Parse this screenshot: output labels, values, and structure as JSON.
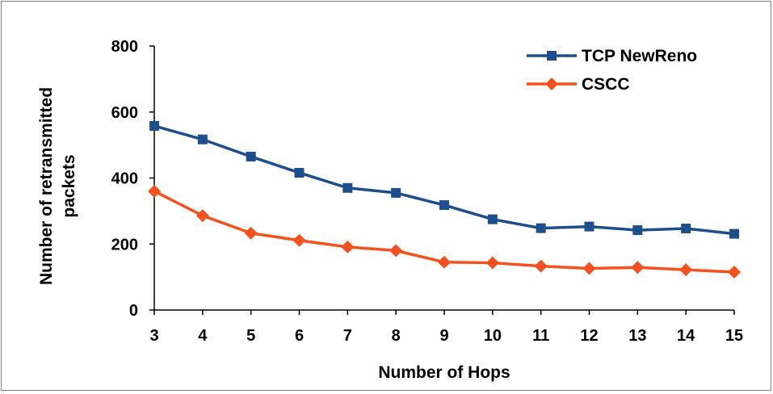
{
  "chart_data": {
    "type": "line",
    "title": "",
    "xlabel": "Number of Hops",
    "ylabel": [
      "Number of retransmitted",
      "packets"
    ],
    "x": [
      3,
      4,
      5,
      6,
      7,
      8,
      9,
      10,
      11,
      12,
      13,
      14,
      15
    ],
    "x_ticks": [
      "3",
      "4",
      "5",
      "6",
      "7",
      "8",
      "9",
      "10",
      "11",
      "12",
      "13",
      "14",
      "15"
    ],
    "ylim": [
      0,
      800
    ],
    "y_ticks": [
      0,
      200,
      400,
      600,
      800
    ],
    "y_tick_labels": [
      "0",
      "200",
      "400",
      "600",
      "800"
    ],
    "grid": false,
    "legend_position": "top-right",
    "series": [
      {
        "name": "TCP NewReno",
        "color": "#1f4e8c",
        "marker": "square",
        "values": [
          558,
          517,
          465,
          416,
          370,
          355,
          318,
          275,
          248,
          253,
          242,
          247,
          231
        ]
      },
      {
        "name": "CSCC",
        "color": "#f4511e",
        "marker": "diamond",
        "values": [
          360,
          286,
          233,
          211,
          191,
          180,
          145,
          143,
          133,
          126,
          129,
          122,
          115
        ]
      }
    ]
  }
}
